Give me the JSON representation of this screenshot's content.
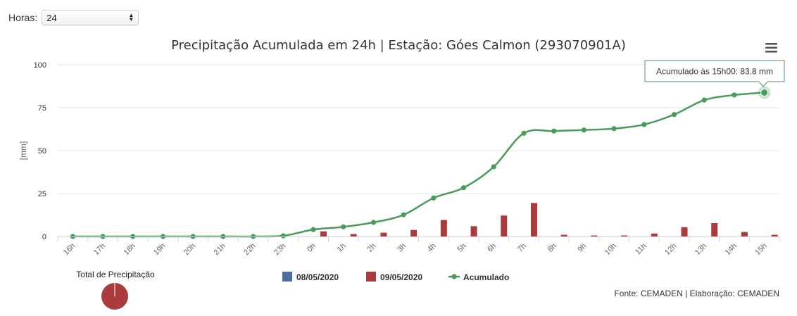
{
  "controls": {
    "hours_label": "Horas:",
    "hours_value": "24"
  },
  "icons": {
    "menu": "hamburger-menu-icon",
    "select_arrows": "up-down-arrows-icon"
  },
  "colors": {
    "accumulated": "#4a9a5a",
    "day1": "#4a6fa5",
    "day2": "#aa3c3e",
    "grid": "#e4e4e4",
    "axis_text": "#666666"
  },
  "chart_data": {
    "type": "bar+line",
    "title": "Precipitação Acumulada em 24h | Estação: Góes Calmon (293070901A)",
    "ylabel": "[mm]",
    "ylim": [
      0,
      100
    ],
    "yticks": [
      0,
      25,
      50,
      75,
      100
    ],
    "categories": [
      "16h",
      "17h",
      "18h",
      "19h",
      "20h",
      "21h",
      "22h",
      "23h",
      "0h",
      "1h",
      "2h",
      "3h",
      "4h",
      "5h",
      "6h",
      "7h",
      "8h",
      "9h",
      "10h",
      "11h",
      "12h",
      "13h",
      "14h",
      "15h"
    ],
    "series": [
      {
        "name": "08/05/2020",
        "type": "bar",
        "values": [
          0,
          0,
          0,
          0,
          0,
          0,
          0,
          0,
          0,
          0,
          0,
          0,
          0,
          0,
          0,
          0,
          0,
          0,
          0,
          0,
          0,
          0,
          0,
          0
        ]
      },
      {
        "name": "09/05/2020",
        "type": "bar",
        "values": [
          0,
          0,
          0,
          0,
          0,
          0,
          0,
          0,
          3.0,
          1.4,
          2.2,
          3.8,
          9.6,
          6.0,
          12.2,
          19.5,
          1.0,
          0.6,
          0.6,
          1.7,
          5.4,
          7.8,
          2.6,
          1.0
        ]
      },
      {
        "name": "Acumulado",
        "type": "line",
        "values": [
          0,
          0,
          0,
          0,
          0,
          0,
          0,
          0.4,
          4.0,
          5.6,
          8.2,
          12.6,
          22.4,
          28.4,
          40.6,
          60.1,
          61.4,
          62.0,
          62.8,
          65.2,
          71.0,
          79.4,
          82.4,
          83.8
        ]
      }
    ],
    "tooltip": "Acumulado às 15h00: 83.8 mm",
    "legend_position": "bottom",
    "pie": {
      "label": "Total de Precipitação",
      "slices": [
        {
          "name": "08/05/2020",
          "value": 0
        },
        {
          "name": "09/05/2020",
          "value": 83.8
        }
      ]
    },
    "credits": "Fonte: CEMADEN | Elaboração: CEMADEN"
  }
}
